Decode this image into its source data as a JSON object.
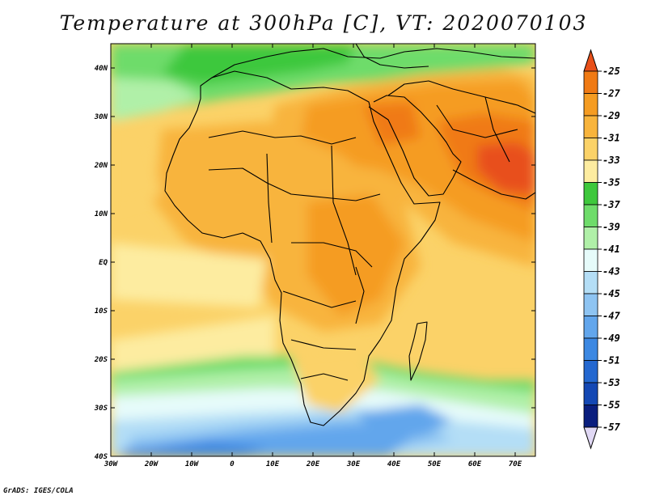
{
  "title": "Temperature at 300hPa [C], VT: 2020070103",
  "footer": "GrADS: IGES/COLA",
  "map": {
    "lat_range": [
      -40,
      45
    ],
    "lon_range": [
      -30,
      75
    ],
    "lat_ticks": [
      {
        "value": 40,
        "label": "40N"
      },
      {
        "value": 30,
        "label": "30N"
      },
      {
        "value": 20,
        "label": "20N"
      },
      {
        "value": 10,
        "label": "10N"
      },
      {
        "value": 0,
        "label": "EQ"
      },
      {
        "value": -10,
        "label": "10S"
      },
      {
        "value": -20,
        "label": "20S"
      },
      {
        "value": -30,
        "label": "30S"
      },
      {
        "value": -40,
        "label": "40S"
      }
    ],
    "lon_ticks": [
      {
        "value": -30,
        "label": "30W"
      },
      {
        "value": -20,
        "label": "20W"
      },
      {
        "value": -10,
        "label": "10W"
      },
      {
        "value": 0,
        "label": "0"
      },
      {
        "value": 10,
        "label": "10E"
      },
      {
        "value": 20,
        "label": "20E"
      },
      {
        "value": 30,
        "label": "30E"
      },
      {
        "value": 40,
        "label": "40E"
      },
      {
        "value": 50,
        "label": "50E"
      },
      {
        "value": 60,
        "label": "60E"
      },
      {
        "value": 70,
        "label": "70E"
      }
    ]
  },
  "colorbar": {
    "labels": [
      "-25",
      "-27",
      "-29",
      "-31",
      "-33",
      "-35",
      "-37",
      "-39",
      "-41",
      "-43",
      "-45",
      "-47",
      "-49",
      "-51",
      "-53",
      "-55",
      "-57"
    ],
    "colors": [
      "#e8501a",
      "#f07a14",
      "#f59c22",
      "#f8b43c",
      "#fbd268",
      "#fdeca0",
      "#3ec83c",
      "#6edc6a",
      "#b0f0a8",
      "#e6fbfa",
      "#b4def6",
      "#8ec4f2",
      "#62a6ec",
      "#3c88e2",
      "#2468d0",
      "#1448b4",
      "#0a1e7e"
    ]
  }
}
